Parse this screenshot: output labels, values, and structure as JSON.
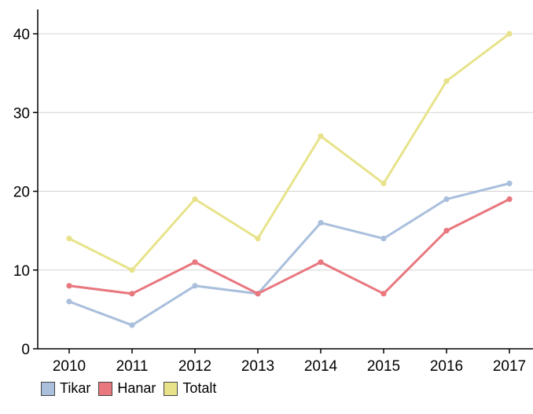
{
  "chart_data": {
    "type": "line",
    "title": "",
    "xlabel": "",
    "ylabel": "",
    "categories": [
      "2010",
      "2011",
      "2012",
      "2013",
      "2014",
      "2015",
      "2016",
      "2017"
    ],
    "ylim": [
      0,
      40
    ],
    "yticks": [
      "0",
      "10",
      "20",
      "30",
      "40"
    ],
    "grid": true,
    "legend_position": "bottom-left",
    "series": [
      {
        "name": "Tikar",
        "color": "#a9bfdc",
        "values": [
          6,
          3,
          8,
          7,
          16,
          14,
          19,
          21
        ]
      },
      {
        "name": "Hanar",
        "color": "#e8777e",
        "values": [
          8,
          7,
          11,
          7,
          11,
          7,
          15,
          19
        ]
      },
      {
        "name": "Totalt",
        "color": "#e8e38a",
        "values": [
          14,
          10,
          19,
          14,
          27,
          21,
          34,
          40
        ]
      }
    ]
  }
}
